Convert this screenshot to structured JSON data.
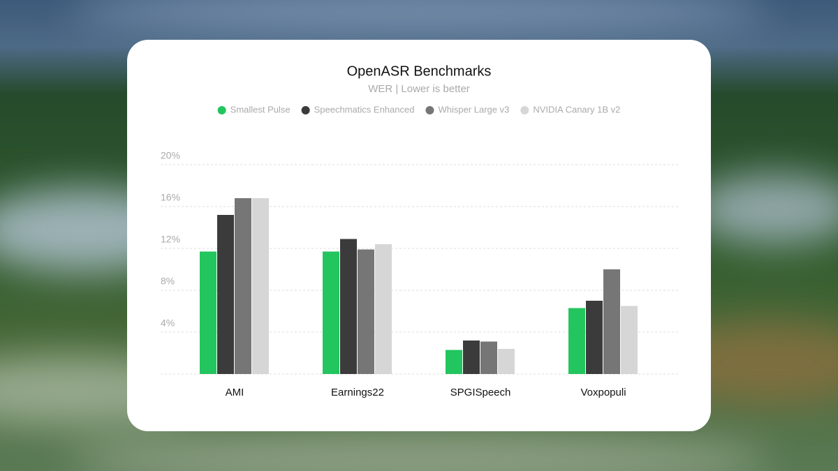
{
  "chart_data": {
    "type": "bar",
    "title": "OpenASR Benchmarks",
    "subtitle": "WER | Lower is better",
    "categories": [
      "AMI",
      "Earnings22",
      "SPGISpeech",
      "Voxpopuli"
    ],
    "series": [
      {
        "name": "Smallest Pulse",
        "color": "#22c55e",
        "values": [
          11.7,
          11.7,
          2.3,
          6.3
        ]
      },
      {
        "name": "Speechmatics Enhanced",
        "color": "#3b3b3b",
        "values": [
          15.2,
          12.9,
          3.2,
          7.0
        ]
      },
      {
        "name": "Whisper Large v3",
        "color": "#767676",
        "values": [
          16.8,
          11.9,
          3.1,
          10.0
        ]
      },
      {
        "name": "NVIDIA Canary 1B v2",
        "color": "#d6d6d6",
        "values": [
          16.8,
          12.4,
          2.4,
          6.5
        ]
      }
    ],
    "ylim": [
      0,
      20
    ],
    "yticks": [
      {
        "value": 4,
        "label": "4%"
      },
      {
        "value": 8,
        "label": "8%"
      },
      {
        "value": 12,
        "label": "12%"
      },
      {
        "value": 16,
        "label": "16%"
      },
      {
        "value": 20,
        "label": "20%"
      }
    ],
    "grid": true,
    "legend": "top"
  }
}
